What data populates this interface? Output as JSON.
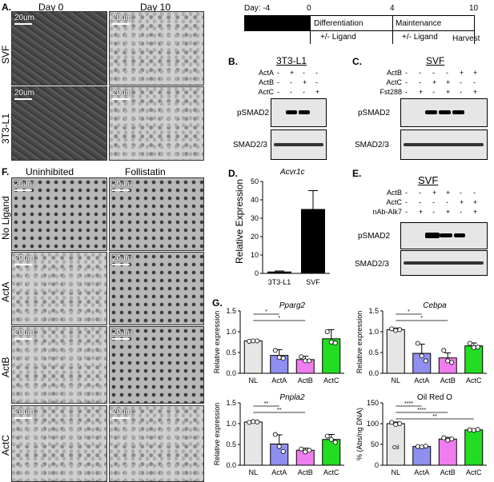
{
  "panelA": {
    "label": "A.",
    "col_headers": [
      "Day 0",
      "Day 10"
    ],
    "row_labels": [
      "SVF",
      "3T3-L1"
    ],
    "scale": "20um"
  },
  "timeline": {
    "day_prefix": "Day: -4",
    "ticks": [
      "0",
      "4",
      "10"
    ],
    "phase1": "Differentiation",
    "phase1_sub": "+/- Ligand",
    "phase2": "Maintenance",
    "phase2_sub": "+/- Ligand",
    "end": "Harvest"
  },
  "panelB": {
    "label": "B.",
    "title": "3T3-L1",
    "rows": [
      {
        "name": "ActA",
        "signs": [
          "-",
          "+",
          "-",
          "-"
        ]
      },
      {
        "name": "ActB",
        "signs": [
          "-",
          "-",
          "+",
          "-"
        ]
      },
      {
        "name": "ActC",
        "signs": [
          "-",
          "-",
          "-",
          "+"
        ]
      }
    ],
    "blot1": "pSMAD2",
    "blot2": "SMAD2/3"
  },
  "panelC": {
    "label": "C.",
    "title": "SVF",
    "rows": [
      {
        "name": "ActB",
        "signs": [
          "-",
          "-",
          "-",
          "-",
          "+",
          "+"
        ]
      },
      {
        "name": "ActC",
        "signs": [
          "-",
          "-",
          "+",
          "+",
          "-",
          "-"
        ]
      },
      {
        "name": "Fst288",
        "signs": [
          "-",
          "+",
          "-",
          "+",
          "-",
          "+"
        ]
      }
    ],
    "blot1": "pSMAD2",
    "blot2": "SMAD2/3"
  },
  "panelD": {
    "label": "D.",
    "title": "Acvr1c",
    "ylabel": "Relative Expression",
    "yticks": [
      "0",
      "10",
      "20",
      "30",
      "40",
      "50"
    ],
    "categories": [
      "3T3-L1",
      "SVF"
    ]
  },
  "panelE": {
    "label": "E.",
    "title": "SVF",
    "rows": [
      {
        "name": "ActB",
        "signs": [
          "-",
          "-",
          "+",
          "+",
          "-",
          "-"
        ]
      },
      {
        "name": "ActC",
        "signs": [
          "-",
          "-",
          "-",
          "-",
          "+",
          "+"
        ]
      },
      {
        "name": "nAb-Alk7",
        "signs": [
          "-",
          "+",
          "-",
          "+",
          "-",
          "+"
        ]
      }
    ],
    "blot1": "pSMAD2",
    "blot2": "SMAD2/3"
  },
  "panelF": {
    "label": "F.",
    "col_headers": [
      "Uninhibited",
      "Follistatin"
    ],
    "row_labels": [
      "No Ligand",
      "ActA",
      "ActB",
      "ActC"
    ],
    "scale": "20um"
  },
  "panelG": {
    "label": "G.",
    "categories": [
      "NL",
      "ActA",
      "ActB",
      "ActC"
    ],
    "colors": [
      "#e6e6e6",
      "#8f8ff0",
      "#f07cf0",
      "#22dd22"
    ],
    "charts": [
      {
        "title": "Pparg2",
        "ylabel": "Relative expression",
        "yticks": [
          "0.0",
          "0.5",
          "1.0",
          "1.5"
        ],
        "sig": [
          "*",
          "*"
        ]
      },
      {
        "title": "Cebpa",
        "ylabel": "Relative expression",
        "yticks": [
          "0.0",
          "0.5",
          "1.0",
          "1.5"
        ],
        "sig": [
          "*",
          "*"
        ]
      },
      {
        "title": "Pnpla2",
        "ylabel": "Relative expression",
        "yticks": [
          "0.0",
          "0.5",
          "1.0",
          "1.5"
        ],
        "sig": [
          "**",
          "**"
        ]
      },
      {
        "title": "Oil Red O",
        "ylabel": "% (Abs/ng DNA)",
        "yticks": [
          "0",
          "50",
          "100",
          "150"
        ],
        "sig": [
          "****",
          "****",
          "**"
        ],
        "bar_text": "Oil"
      }
    ]
  },
  "chart_data": [
    {
      "type": "bar",
      "title": "Acvr1c",
      "ylabel": "Relative Expression",
      "categories": [
        "3T3-L1",
        "SVF"
      ],
      "values": [
        1,
        35
      ],
      "errors": [
        0.3,
        10
      ],
      "ylim": [
        0,
        50
      ]
    },
    {
      "type": "bar",
      "title": "Pparg2",
      "ylabel": "Relative expression",
      "categories": [
        "NL",
        "ActA",
        "ActB",
        "ActC"
      ],
      "values": [
        0.78,
        0.43,
        0.33,
        0.83
      ],
      "errors": [
        0.02,
        0.14,
        0.08,
        0.22
      ],
      "points": [
        [
          0.77,
          0.78,
          0.78
        ],
        [
          0.55,
          0.38,
          0.36
        ],
        [
          0.4,
          0.3,
          0.3
        ],
        [
          1.0,
          0.75,
          0.73
        ]
      ],
      "ylim": [
        0,
        1.5
      ]
    },
    {
      "type": "bar",
      "title": "Cebpa",
      "ylabel": "Relative expression",
      "categories": [
        "NL",
        "ActA",
        "ActB",
        "ActC"
      ],
      "values": [
        1.05,
        0.48,
        0.37,
        0.66
      ],
      "errors": [
        0.04,
        0.22,
        0.12,
        0.07
      ],
      "points": [
        [
          1.07,
          1.03,
          1.05
        ],
        [
          0.72,
          0.42,
          0.3
        ],
        [
          0.55,
          0.3,
          0.26
        ],
        [
          0.72,
          0.62,
          0.63
        ]
      ],
      "ylim": [
        0,
        1.5
      ]
    },
    {
      "type": "bar",
      "title": "Pnpla2",
      "ylabel": "Relative expression",
      "categories": [
        "NL",
        "ActA",
        "ActB",
        "ActC"
      ],
      "values": [
        1.04,
        0.51,
        0.36,
        0.62
      ],
      "errors": [
        0.03,
        0.22,
        0.05,
        0.12
      ],
      "points": [
        [
          1.03,
          1.05,
          1.04
        ],
        [
          0.74,
          0.45,
          0.33
        ],
        [
          0.39,
          0.32,
          0.36
        ],
        [
          0.7,
          0.62,
          0.55
        ]
      ],
      "ylim": [
        0,
        1.5
      ]
    },
    {
      "type": "bar",
      "title": "Oil Red O",
      "ylabel": "% (Abs/ng DNA)",
      "categories": [
        "NL",
        "ActA",
        "ActB",
        "ActC"
      ],
      "values": [
        100,
        45,
        63,
        85
      ],
      "errors": [
        4,
        1,
        4,
        1
      ],
      "points": [
        [
          103,
          98,
          100
        ],
        [
          45,
          44,
          46
        ],
        [
          66,
          60,
          63
        ],
        [
          85,
          84,
          86
        ]
      ],
      "ylim": [
        0,
        150
      ]
    }
  ]
}
